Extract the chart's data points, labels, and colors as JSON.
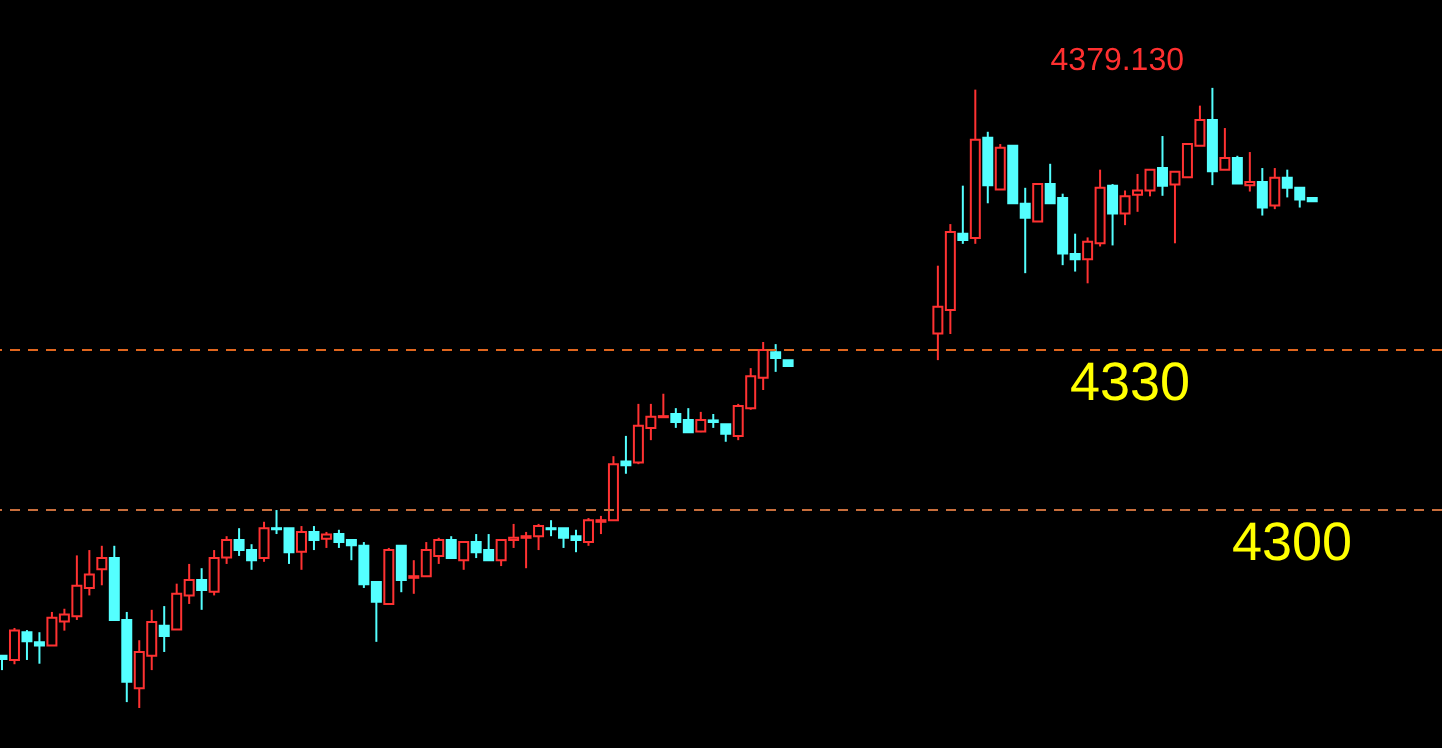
{
  "chart_data": {
    "type": "candlestick",
    "categories": [
      null,
      null,
      null,
      null,
      null,
      null,
      null,
      null,
      null,
      null,
      null,
      null,
      null,
      null,
      null,
      null,
      null,
      null,
      null,
      null,
      null,
      null,
      null,
      null,
      null,
      null,
      null,
      null,
      null,
      null,
      null,
      null,
      null,
      null,
      null,
      null,
      null,
      null,
      null,
      null,
      null,
      null,
      null,
      null,
      null,
      null,
      null,
      null,
      null,
      null,
      null,
      null,
      null,
      null,
      null,
      null,
      null,
      null,
      null,
      null,
      null,
      null,
      null,
      null,
      null,
      null,
      null,
      null,
      null,
      null,
      null,
      null,
      null,
      null,
      null,
      null,
      null,
      null,
      null,
      null,
      null,
      null,
      null,
      null,
      null,
      null,
      null,
      null,
      null,
      null,
      null,
      null,
      null,
      null,
      null,
      null,
      null,
      null,
      null,
      null,
      null,
      null,
      null,
      null,
      null,
      null
    ],
    "ohlc": [
      [
        4272.7,
        4272.7,
        4270.0,
        4272.1
      ],
      [
        4271.9,
        4277.9,
        4271.1,
        4277.4
      ],
      [
        4277.1,
        4277.5,
        4271.9,
        4275.4
      ],
      [
        4275.2,
        4277.1,
        4271.2,
        4274.6
      ],
      [
        4274.6,
        4280.9,
        4274.6,
        4279.8
      ],
      [
        4279.1,
        4281.5,
        4277.4,
        4280.4
      ],
      [
        4280.1,
        4291.5,
        4279.4,
        4285.8
      ],
      [
        4285.4,
        4292.5,
        4284.0,
        4287.9
      ],
      [
        4288.9,
        4293.3,
        4285.9,
        4291.0
      ],
      [
        4291.0,
        4293.3,
        4279.4,
        4279.4
      ],
      [
        4279.4,
        4280.9,
        4264.0,
        4267.8
      ],
      [
        4266.6,
        4275.6,
        4262.9,
        4273.4
      ],
      [
        4272.7,
        4281.3,
        4270.0,
        4279.0
      ],
      [
        4278.3,
        4282.0,
        4273.4,
        4276.4
      ],
      [
        4277.6,
        4286.2,
        4277.6,
        4284.3
      ],
      [
        4284.0,
        4289.9,
        4282.4,
        4286.9
      ],
      [
        4286.9,
        4289.1,
        4281.3,
        4285.0
      ],
      [
        4284.7,
        4292.5,
        4284.0,
        4291.0
      ],
      [
        4291.1,
        4295.1,
        4289.9,
        4294.4
      ],
      [
        4294.4,
        4296.6,
        4291.4,
        4292.5
      ],
      [
        4292.5,
        4293.6,
        4288.8,
        4290.6
      ],
      [
        4291.0,
        4297.8,
        4290.3,
        4296.6
      ],
      [
        4296.6,
        4300.0,
        4295.5,
        4296.4
      ],
      [
        4296.6,
        4296.6,
        4289.9,
        4292.1
      ],
      [
        4292.2,
        4297.0,
        4288.8,
        4295.9
      ],
      [
        4295.9,
        4297.0,
        4292.5,
        4294.4
      ],
      [
        4294.6,
        4295.9,
        4292.9,
        4295.4
      ],
      [
        4295.5,
        4296.3,
        4292.9,
        4294.0
      ],
      [
        4294.4,
        4294.4,
        4290.6,
        4293.4
      ],
      [
        4293.3,
        4294.0,
        4285.4,
        4286.1
      ],
      [
        4286.5,
        4286.5,
        4275.3,
        4282.8
      ],
      [
        4282.4,
        4292.9,
        4282.4,
        4292.5
      ],
      [
        4293.3,
        4293.3,
        4284.6,
        4286.9
      ],
      [
        4287.3,
        4290.6,
        4284.3,
        4287.6
      ],
      [
        4287.6,
        4294.0,
        4287.6,
        4292.5
      ],
      [
        4291.4,
        4294.8,
        4289.9,
        4294.4
      ],
      [
        4294.4,
        4295.1,
        4291.0,
        4291.0
      ],
      [
        4290.6,
        4294.0,
        4288.8,
        4294.0
      ],
      [
        4294.0,
        4295.5,
        4291.0,
        4292.1
      ],
      [
        4292.5,
        4295.5,
        4290.6,
        4290.6
      ],
      [
        4290.6,
        4294.4,
        4289.5,
        4294.4
      ],
      [
        4294.4,
        4297.4,
        4292.9,
        4294.8
      ],
      [
        4294.8,
        4295.9,
        4289.1,
        4295.1
      ],
      [
        4295.1,
        4297.4,
        4292.5,
        4297.0
      ],
      [
        4296.6,
        4298.1,
        4295.1,
        4296.4
      ],
      [
        4296.6,
        4296.6,
        4292.9,
        4294.8
      ],
      [
        4295.1,
        4296.3,
        4292.1,
        4294.4
      ],
      [
        4294.0,
        4298.5,
        4293.3,
        4298.1
      ],
      [
        4297.8,
        4298.9,
        4295.5,
        4298.1
      ],
      [
        4298.1,
        4310.1,
        4298.1,
        4308.6
      ],
      [
        4309.1,
        4313.9,
        4306.8,
        4308.4
      ],
      [
        4308.9,
        4319.9,
        4308.6,
        4315.8
      ],
      [
        4315.4,
        4319.9,
        4313.1,
        4317.5
      ],
      [
        4317.4,
        4321.8,
        4317.3,
        4317.6
      ],
      [
        4318.0,
        4319.1,
        4315.4,
        4316.5
      ],
      [
        4316.9,
        4319.1,
        4314.6,
        4314.6
      ],
      [
        4314.7,
        4318.4,
        4314.6,
        4316.9
      ],
      [
        4316.8,
        4318.0,
        4315.4,
        4316.5
      ],
      [
        4316.1,
        4316.1,
        4312.8,
        4314.3
      ],
      [
        4313.9,
        4319.9,
        4313.1,
        4319.5
      ],
      [
        4319.1,
        4326.6,
        4318.8,
        4325.1
      ],
      [
        4324.8,
        4331.5,
        4322.5,
        4330.0
      ],
      [
        4329.6,
        4331.1,
        4325.9,
        4328.5
      ],
      [
        4328.1,
        4328.1,
        4327.0,
        4327.0
      ],
      null,
      null,
      null,
      null,
      null,
      null,
      null,
      null,
      null,
      null,
      null,
      [
        4333.1,
        4345.8,
        4328.1,
        4338.1
      ],
      [
        4337.5,
        4353.6,
        4333.0,
        4352.1
      ],
      [
        4351.8,
        4360.8,
        4349.9,
        4350.6
      ],
      [
        4351.0,
        4378.8,
        4349.9,
        4369.4
      ],
      [
        4369.8,
        4370.9,
        4357.5,
        4360.9
      ],
      [
        4360.1,
        4368.6,
        4360.1,
        4367.9
      ],
      [
        4368.3,
        4368.3,
        4357.5,
        4357.5
      ],
      [
        4357.4,
        4360.4,
        4344.4,
        4354.8
      ],
      [
        4354.1,
        4361.1,
        4354.1,
        4361.1
      ],
      [
        4361.1,
        4364.9,
        4357.5,
        4357.5
      ],
      [
        4358.5,
        4359.3,
        4345.9,
        4348.1
      ],
      [
        4348.0,
        4351.8,
        4344.7,
        4347.0
      ],
      [
        4347.0,
        4351.1,
        4342.5,
        4350.3
      ],
      [
        4350.0,
        4363.8,
        4349.4,
        4360.4
      ],
      [
        4360.8,
        4361.1,
        4349.6,
        4355.6
      ],
      [
        4355.6,
        4359.9,
        4353.4,
        4358.8
      ],
      [
        4359.1,
        4363.0,
        4355.9,
        4359.9
      ],
      [
        4359.9,
        4363.8,
        4358.8,
        4363.8
      ],
      [
        4364.1,
        4370.1,
        4358.9,
        4360.8
      ],
      [
        4361.0,
        4363.4,
        4350.0,
        4363.4
      ],
      [
        4362.4,
        4368.6,
        4362.4,
        4368.6
      ],
      [
        4368.3,
        4375.8,
        4368.3,
        4373.1
      ],
      [
        4373.1,
        4379.13,
        4360.9,
        4363.5
      ],
      [
        4363.8,
        4371.6,
        4363.8,
        4366.0
      ],
      [
        4366.0,
        4366.4,
        4361.2,
        4361.2
      ],
      [
        4360.9,
        4367.1,
        4359.7,
        4361.5
      ],
      [
        4361.5,
        4364.1,
        4355.2,
        4356.7
      ],
      [
        4357.1,
        4364.1,
        4356.4,
        4362.3
      ],
      [
        4362.3,
        4363.8,
        4358.6,
        4360.4
      ],
      [
        4360.4,
        4360.4,
        4356.7,
        4358.2
      ],
      [
        4358.5,
        4358.5,
        4357.9,
        4357.9
      ]
    ],
    "colors": [
      "#54ffff",
      "#ff3232",
      "#54ffff",
      "#54ffff",
      "#ff3232",
      "#ff3232",
      "#ff3232",
      "#ff3232",
      "#ff3232",
      "#54ffff",
      "#54ffff",
      "#ff3232",
      "#ff3232",
      "#54ffff",
      "#ff3232",
      "#ff3232",
      "#54ffff",
      "#ff3232",
      "#ff3232",
      "#54ffff",
      "#54ffff",
      "#ff3232",
      "#54ffff",
      "#54ffff",
      "#ff3232",
      "#54ffff",
      "#ff3232",
      "#54ffff",
      "#54ffff",
      "#54ffff",
      "#54ffff",
      "#ff3232",
      "#54ffff",
      "#ff3232",
      "#ff3232",
      "#ff3232",
      "#54ffff",
      "#ff3232",
      "#54ffff",
      "#54ffff",
      "#ff3232",
      "#ff3232",
      "#ff3232",
      "#ff3232",
      "#54ffff",
      "#54ffff",
      "#54ffff",
      "#ff3232",
      "#ff3232",
      "#ff3232",
      "#54ffff",
      "#ff3232",
      "#ff3232",
      "#ff3232",
      "#54ffff",
      "#54ffff",
      "#ff3232",
      "#54ffff",
      "#54ffff",
      "#ff3232",
      "#ff3232",
      "#ff3232",
      "#54ffff",
      "#54ffff",
      null,
      null,
      null,
      null,
      null,
      null,
      null,
      null,
      null,
      null,
      null,
      "#ff3232",
      "#ff3232",
      "#54ffff",
      "#ff3232",
      "#54ffff",
      "#ff3232",
      "#54ffff",
      "#54ffff",
      "#ff3232",
      "#54ffff",
      "#54ffff",
      "#54ffff",
      "#ff3232",
      "#ff3232",
      "#54ffff",
      "#ff3232",
      "#ff3232",
      "#ff3232",
      "#54ffff",
      "#ff3232",
      "#ff3232",
      "#ff3232",
      "#54ffff",
      "#ff3232",
      "#54ffff",
      "#ff3232",
      "#54ffff",
      "#ff3232",
      "#54ffff",
      "#54ffff",
      "#54ffff"
    ],
    "ylim": [
      4255.4,
      4395.6
    ],
    "tick_labels": false,
    "ref_lines": [
      {
        "axis": "y",
        "value": 4330,
        "label": "4330",
        "color": "#e0661e",
        "line_style": "dashed"
      },
      {
        "axis": "y",
        "value": 4300,
        "label": "4300",
        "color": "#c86e3c",
        "line_style": "dashed"
      }
    ],
    "annotations": [
      "4379.130"
    ]
  }
}
